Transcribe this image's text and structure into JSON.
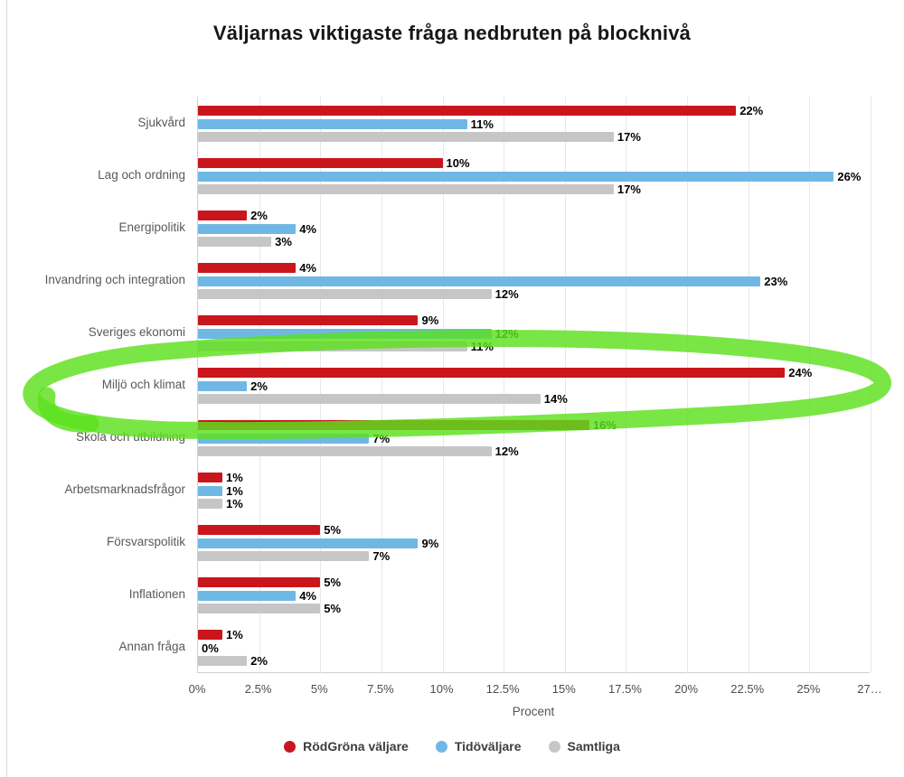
{
  "title": "Väljarnas viktigaste fråga nedbruten på blocknivå",
  "chart_data": {
    "type": "bar",
    "orientation": "horizontal",
    "title": "Väljarnas viktigaste fråga nedbruten på blocknivå",
    "xlabel": "Procent",
    "xlim": [
      0,
      27.5
    ],
    "grid": true,
    "legend_position": "bottom",
    "categories": [
      "Sjukvård",
      "Lag och ordning",
      "Energipolitik",
      "Invandring och integration",
      "Sveriges ekonomi",
      "Miljö och klimat",
      "Skola och utbildning",
      "Arbetsmarknadsfrågor",
      "Försvarspolitik",
      "Inflationen",
      "Annan fråga"
    ],
    "series": [
      {
        "name": "RödGröna väljare",
        "color": "#c9161d",
        "values": [
          22,
          10,
          2,
          4,
          9,
          24,
          16,
          1,
          5,
          5,
          1
        ]
      },
      {
        "name": "Tidöväljare",
        "color": "#6fb8e5",
        "values": [
          11,
          26,
          4,
          23,
          12,
          2,
          7,
          1,
          9,
          4,
          0
        ]
      },
      {
        "name": "Samtliga",
        "color": "#c6c6c6",
        "values": [
          17,
          17,
          3,
          12,
          11,
          14,
          12,
          1,
          7,
          5,
          2
        ]
      }
    ],
    "value_label_suffix": "%",
    "x_ticks": [
      {
        "value": 0,
        "label": "0%"
      },
      {
        "value": 2.5,
        "label": "2.5%"
      },
      {
        "value": 5,
        "label": "5%"
      },
      {
        "value": 7.5,
        "label": "7.5%"
      },
      {
        "value": 10,
        "label": "10%"
      },
      {
        "value": 12.5,
        "label": "12.5%"
      },
      {
        "value": 15,
        "label": "15%"
      },
      {
        "value": 17.5,
        "label": "17.5%"
      },
      {
        "value": 20,
        "label": "20%"
      },
      {
        "value": 22.5,
        "label": "22.5%"
      },
      {
        "value": 25,
        "label": "25%"
      },
      {
        "value": 27.5,
        "label": "27…"
      }
    ],
    "annotation": {
      "type": "hand-drawn-highlighter-ellipse",
      "color": "#5ce11d",
      "target_category": "Miljö och klimat"
    }
  }
}
